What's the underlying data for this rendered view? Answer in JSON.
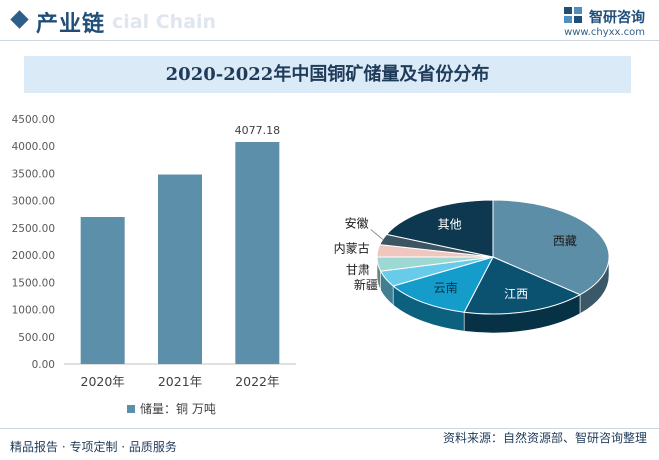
{
  "header": {
    "section_title": "产业链",
    "watermark_text": "cial Chain",
    "brand_name": "智研咨询",
    "brand_url": "www.chyxx.com"
  },
  "chart_title": "2020-2022年中国铜矿储量及省份分布",
  "colors": {
    "bar": "#5b8faa",
    "dark_blue": "#1f4e79",
    "title_band": "#dbeaf7"
  },
  "chart_data": [
    {
      "type": "bar",
      "categories": [
        "2020年",
        "2021年",
        "2022年"
      ],
      "values": [
        2700,
        3480,
        4077.18
      ],
      "data_labels": [
        "",
        "",
        "4077.18"
      ],
      "ylim": [
        0,
        4500
      ],
      "yticks": [
        "0.00",
        "500.00",
        "1000.00",
        "1500.00",
        "2000.00",
        "2500.00",
        "3000.00",
        "3500.00",
        "4000.00",
        "4500.00"
      ],
      "legend": "储量：铜 万吨",
      "legend_position": "bottom"
    },
    {
      "type": "pie",
      "slices": [
        {
          "label": "西藏",
          "value": 36.5,
          "color": "#5d8ea7"
        },
        {
          "label": "江西",
          "value": 17.5,
          "color": "#0b5170"
        },
        {
          "label": "云南",
          "value": 12.5,
          "color": "#149ccb"
        },
        {
          "label": "新疆",
          "value": 4.5,
          "color": "#69cbea"
        },
        {
          "label": "甘肃",
          "value": 4.0,
          "color": "#9ed8d2"
        },
        {
          "label": "内蒙古",
          "value": 3.5,
          "color": "#f0c6c0"
        },
        {
          "label": "安徽",
          "value": 3.0,
          "color": "#3d5462"
        },
        {
          "label": "其他",
          "value": 18.5,
          "color": "#0e3850"
        }
      ]
    }
  ],
  "footer": {
    "left": "精品报告 · 专项定制 · 品质服务",
    "right": "资料来源：自然资源部、智研咨询整理"
  }
}
